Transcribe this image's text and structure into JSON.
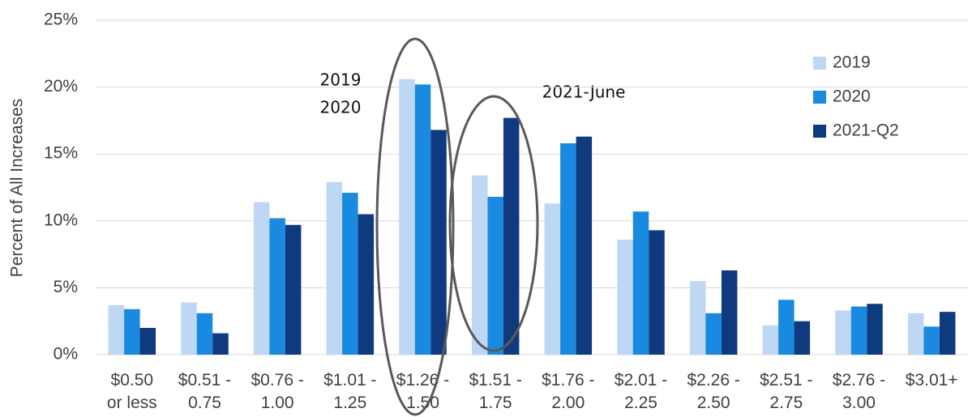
{
  "chart_data": {
    "type": "bar",
    "y_label": "Percent of All Increases",
    "categories": [
      [
        "$0.50",
        "or less"
      ],
      [
        "$0.51 -",
        "0.75"
      ],
      [
        "$0.76 -",
        "1.00"
      ],
      [
        "$1.01 -",
        "1.25"
      ],
      [
        "$1.26 -",
        "1.50"
      ],
      [
        "$1.51 -",
        "1.75"
      ],
      [
        "$1.76 -",
        "2.00"
      ],
      [
        "$2.01 -",
        "2.25"
      ],
      [
        "$2.26 -",
        "2.50"
      ],
      [
        "$2.51 -",
        "2.75"
      ],
      [
        "$2.76 -",
        "3.00"
      ],
      [
        "$3.01+",
        null
      ]
    ],
    "series": [
      {
        "name": "2019",
        "color": "#bdd7f5",
        "values": [
          3.7,
          3.9,
          11.4,
          12.9,
          20.6,
          13.4,
          11.3,
          8.6,
          5.5,
          2.2,
          3.3,
          3.1
        ]
      },
      {
        "name": "2020",
        "color": "#1a8ae0",
        "values": [
          3.4,
          3.1,
          10.2,
          12.1,
          20.2,
          11.8,
          15.8,
          10.7,
          3.1,
          4.1,
          3.6,
          2.1
        ]
      },
      {
        "name": "2021-Q2",
        "color": "#0f3a7e",
        "values": [
          2.0,
          1.6,
          9.7,
          10.5,
          16.8,
          17.7,
          16.3,
          9.3,
          6.3,
          2.5,
          3.8,
          3.2
        ]
      }
    ],
    "annotations": [
      "2019",
      "2020",
      "2021-June"
    ],
    "ylim": [
      0,
      25
    ],
    "yticks": [
      {
        "value": 0,
        "label": "0%"
      },
      {
        "value": 5,
        "label": "5%"
      },
      {
        "value": 10,
        "label": "10%"
      },
      {
        "value": 15,
        "label": "15%"
      },
      {
        "value": 20,
        "label": "20%"
      },
      {
        "value": 25,
        "label": "25%"
      }
    ],
    "grid": true,
    "legend": "top-right"
  }
}
